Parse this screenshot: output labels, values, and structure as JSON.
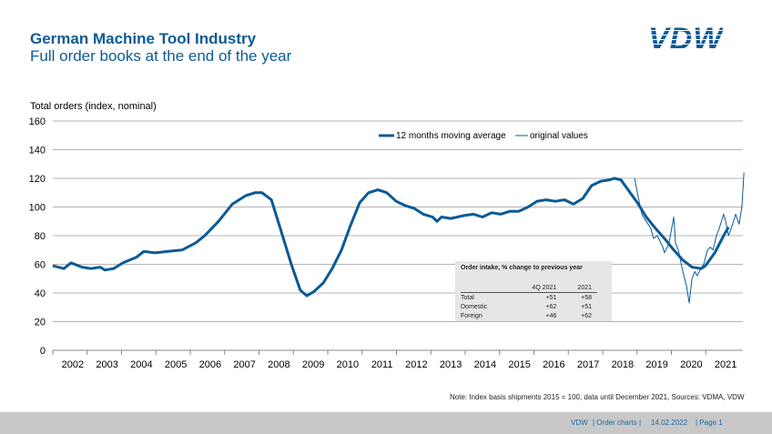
{
  "header": {
    "title": "German Machine Tool Industry",
    "subtitle": "Full order books at the end of the year",
    "logo": "VDW"
  },
  "chart_data": {
    "type": "line",
    "ylabel": "Total orders (index, nominal)",
    "ylim": [
      0,
      160
    ],
    "yticks": [
      0,
      20,
      40,
      60,
      80,
      100,
      120,
      140,
      160
    ],
    "xlim": [
      2002,
      2022.1
    ],
    "xticks": [
      "2002",
      "2003",
      "2004",
      "2005",
      "2006",
      "2007",
      "2008",
      "2009",
      "2010",
      "2011",
      "2012",
      "2013",
      "2014",
      "2015",
      "2016",
      "2017",
      "2018",
      "2019",
      "2020",
      "2021"
    ],
    "grid": true,
    "legend": "top-center",
    "colors": {
      "series": "#0b5a96",
      "grid": "#b4b4b4"
    },
    "series": [
      {
        "name": "12 months moving average",
        "x": [
          2002.0,
          2002.32,
          2002.53,
          2002.85,
          2003.11,
          2003.38,
          2003.51,
          2003.77,
          2004.04,
          2004.44,
          2004.65,
          2004.97,
          2005.36,
          2005.76,
          2006.16,
          2006.42,
          2006.82,
          2007.22,
          2007.62,
          2007.88,
          2008.09,
          2008.36,
          2008.62,
          2008.94,
          2009.2,
          2009.39,
          2009.6,
          2009.87,
          2010.13,
          2010.4,
          2010.66,
          2010.93,
          2011.19,
          2011.46,
          2011.72,
          2011.99,
          2012.25,
          2012.52,
          2012.78,
          2013.05,
          2013.18,
          2013.31,
          2013.58,
          2013.97,
          2014.24,
          2014.5,
          2014.77,
          2015.03,
          2015.3,
          2015.56,
          2015.83,
          2016.09,
          2016.36,
          2016.62,
          2016.89,
          2017.15,
          2017.42,
          2017.68,
          2017.95,
          2018.21,
          2018.34,
          2018.53,
          2018.74,
          2019.01,
          2019.27,
          2019.54,
          2019.8,
          2020.07,
          2020.33,
          2020.6,
          2020.86,
          2020.99,
          2021.26,
          2021.52,
          2021.66
        ],
        "values": [
          59,
          57,
          61,
          58,
          57,
          58,
          56,
          57,
          61,
          65,
          69,
          68,
          69,
          70,
          75,
          80,
          90,
          102,
          108,
          110,
          110,
          105,
          85,
          60,
          42,
          38,
          41,
          47,
          57,
          70,
          87,
          103,
          110,
          112,
          110,
          104,
          101,
          99,
          95,
          93,
          90,
          93,
          92,
          94,
          95,
          93,
          96,
          95,
          97,
          97,
          100,
          104,
          105,
          104,
          105,
          102,
          106,
          115,
          118,
          119,
          120,
          119,
          112,
          103,
          93,
          85,
          78,
          70,
          63,
          58,
          57,
          59,
          68,
          80,
          86
        ]
      },
      {
        "name": "original values",
        "x": [
          2018.93,
          2019.01,
          2019.14,
          2019.27,
          2019.4,
          2019.48,
          2019.59,
          2019.75,
          2019.8,
          2019.93,
          2020.07,
          2020.12,
          2020.2,
          2020.33,
          2020.44,
          2020.52,
          2020.6,
          2020.68,
          2020.75,
          2020.86,
          2020.94,
          2021.05,
          2021.13,
          2021.21,
          2021.31,
          2021.39,
          2021.52,
          2021.58,
          2021.66,
          2021.74,
          2021.87,
          2021.97,
          2022.05,
          2022.11
        ],
        "values": [
          120,
          110,
          95,
          90,
          85,
          78,
          80,
          72,
          68,
          75,
          93,
          75,
          70,
          55,
          45,
          33,
          50,
          55,
          52,
          57,
          60,
          70,
          72,
          70,
          80,
          85,
          95,
          90,
          80,
          85,
          95,
          88,
          100,
          124
        ]
      }
    ]
  },
  "inset": {
    "title": "Order intake, % change to previous year",
    "columns": [
      "",
      "4Q 2021",
      "2021"
    ],
    "rows": [
      [
        "Total",
        "+51",
        "+58"
      ],
      [
        "Domestic",
        "+62",
        "+51"
      ],
      [
        "Foreign",
        "+46",
        "+62"
      ]
    ]
  },
  "note": "Note: Index basis shipments 2015 = 100, data until December 2021, Sources: VDMA,  VDW",
  "footer": {
    "org": "VDW",
    "section": "| Order charts |",
    "date": "14.02.2022",
    "page": "| Page 1"
  }
}
